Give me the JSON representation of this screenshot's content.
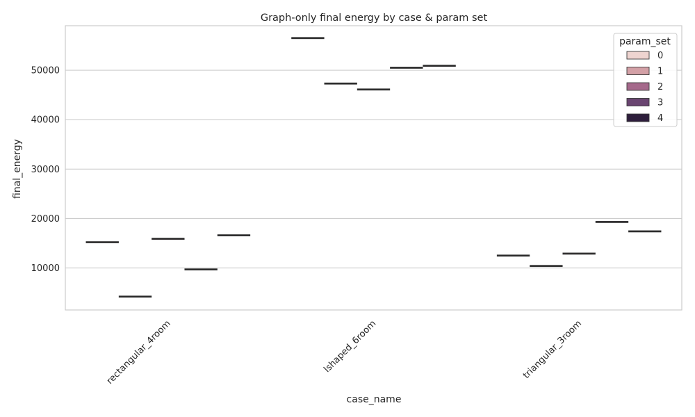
{
  "chart_data": {
    "type": "box",
    "title": "Graph-only final energy by case & param set",
    "xlabel": "case_name",
    "ylabel": "final_energy",
    "categories": [
      "rectangular_4room",
      "lshaped_6room",
      "triangular_3room"
    ],
    "yticks": [
      10000,
      20000,
      30000,
      40000,
      50000
    ],
    "ylim": [
      1500,
      59000
    ],
    "grid": "horizontal",
    "legend": {
      "title": "param_set",
      "placement": "top-right",
      "entries": [
        "0",
        "1",
        "2",
        "3",
        "4"
      ]
    },
    "series": [
      {
        "name": "0",
        "color": "#eed4d0",
        "values": [
          15200,
          56500,
          12500
        ]
      },
      {
        "name": "1",
        "color": "#d3a0a6",
        "values": [
          4200,
          47300,
          10400
        ]
      },
      {
        "name": "2",
        "color": "#a5698b",
        "values": [
          15900,
          46100,
          12900
        ]
      },
      {
        "name": "3",
        "color": "#6a4571",
        "values": [
          9700,
          50500,
          19300
        ]
      },
      {
        "name": "4",
        "color": "#2e1e3c",
        "values": [
          16600,
          50900,
          17400
        ]
      }
    ]
  }
}
